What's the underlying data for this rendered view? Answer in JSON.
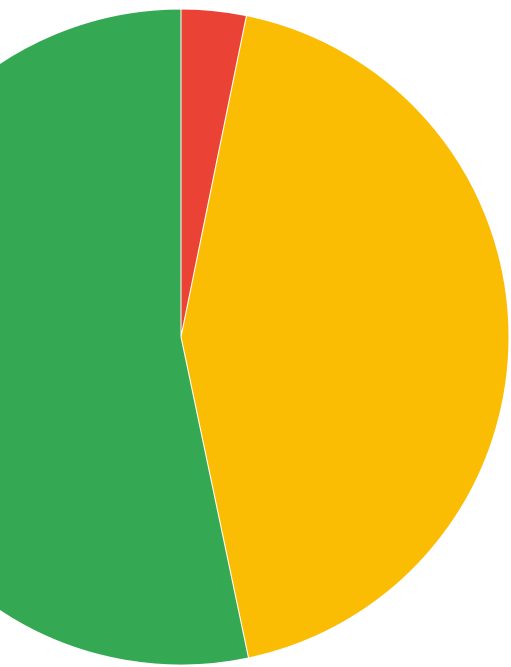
{
  "chart_data": {
    "type": "pie",
    "title": "",
    "start_angle_deg": 0,
    "direction": "clockwise",
    "slices": [
      {
        "value": 3.2,
        "color": "#ea4335"
      },
      {
        "value": 43.5,
        "color": "#fbbc04"
      },
      {
        "value": 53.3,
        "color": "#34a853"
      }
    ]
  }
}
